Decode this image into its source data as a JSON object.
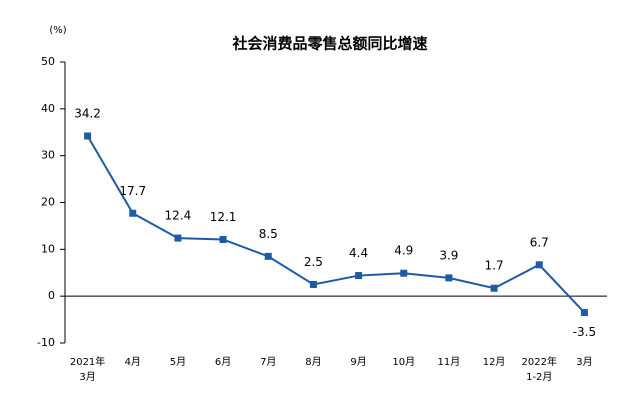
{
  "chart_data": {
    "type": "line",
    "title": "社会消费品零售总额同比增速",
    "y_label": "(%)",
    "categories": [
      "2021年\n3月",
      "4月",
      "5月",
      "6月",
      "7月",
      "8月",
      "9月",
      "10月",
      "11月",
      "12月",
      "2022年\n1-2月",
      "3月"
    ],
    "values": [
      34.2,
      17.7,
      12.4,
      12.1,
      8.5,
      2.5,
      4.4,
      4.9,
      3.9,
      1.7,
      6.7,
      -3.5
    ],
    "color": "#1f5aa6",
    "ylim": [
      -10,
      50
    ],
    "yticks": [
      -10,
      0,
      10,
      20,
      30,
      40,
      50
    ],
    "grid": false
  }
}
